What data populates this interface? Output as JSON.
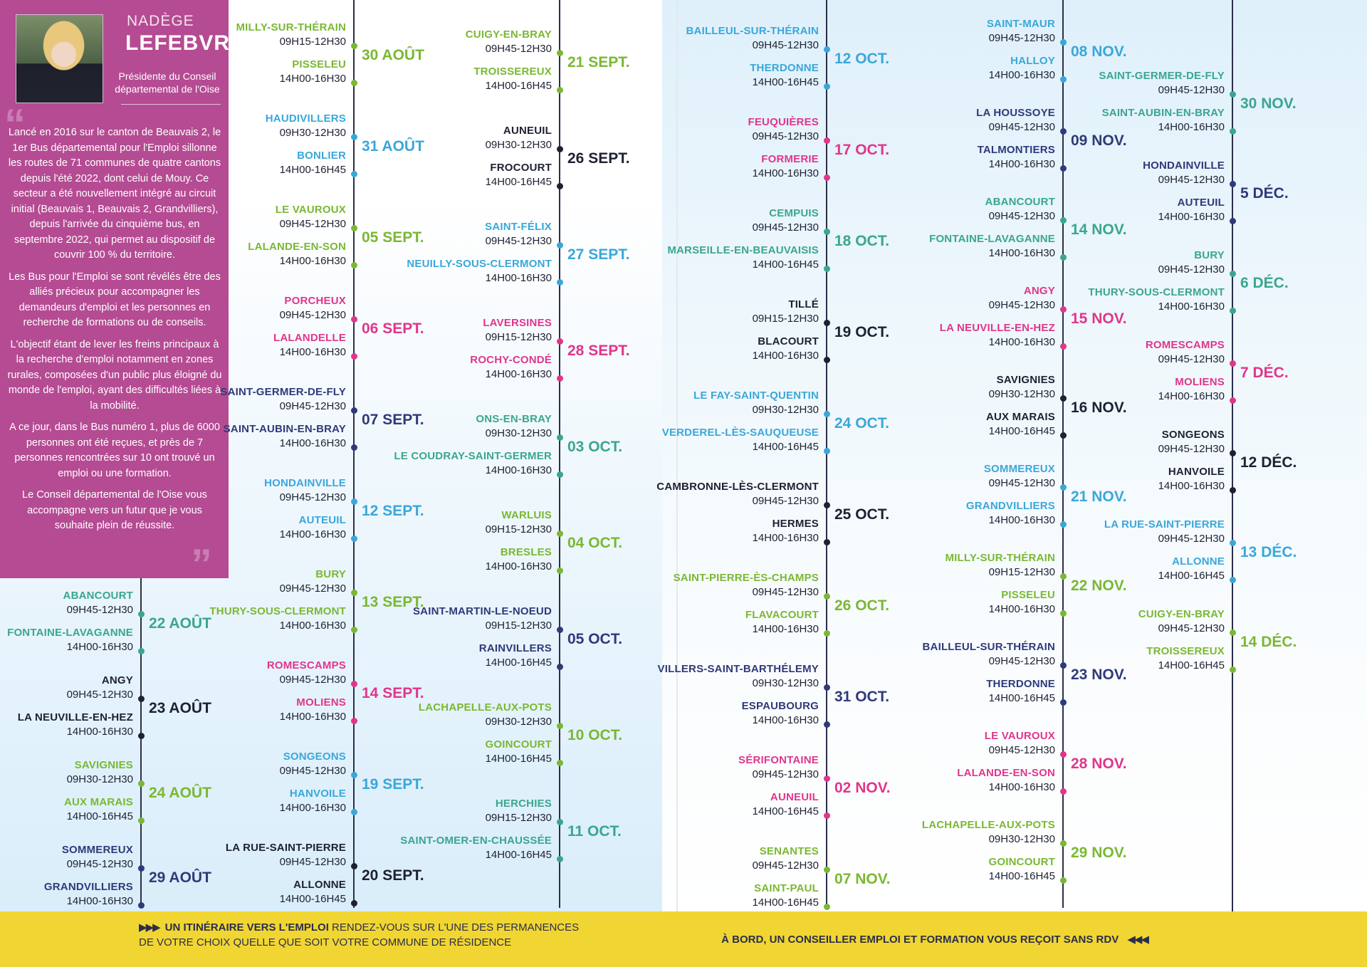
{
  "intro": {
    "name_first": "NADÈGE",
    "name_last": "LEFEBVRE",
    "role": "Présidente du Conseil départemental de l'Oise",
    "paragraphs": [
      "Lancé en 2016 sur le canton de Beauvais 2, le 1er Bus départemental pour l'Emploi sillonne les routes de 71 communes de quatre cantons depuis l'été 2022, dont celui de Mouy. Ce secteur a été nouvellement intégré au circuit initial (Beauvais 1, Beauvais 2, Grandvilliers), depuis l'arrivée du cinquième bus, en septembre 2022, qui permet au dispositif de couvrir 100 % du territoire.",
      "Les Bus pour l'Emploi se sont révélés être des alliés précieux pour accompagner les demandeurs d'emploi et les personnes en recherche de formations ou de conseils.",
      "L'objectif étant de lever les freins principaux à la recherche d'emploi notamment en zones rurales, composées d'un public plus éloigné du monde de l'emploi, ayant des difficultés liées à la mobilité.",
      "A ce jour, dans le Bus numéro 1, plus de 6000 personnes ont été reçues, et près de 7 personnes rencontrées sur 10 ont trouvé un emploi ou une formation.",
      "Le Conseil départemental de l'Oise vous accompagne vers un futur que je vous souhaite plein de réussite."
    ]
  },
  "colors": {
    "green": "#7ab833",
    "teal": "#3aa68f",
    "blue": "#3aa7d9",
    "pink": "#e0368c",
    "navy": "#2f3a7a",
    "dark": "#1e2132",
    "yellow": "#f1d633",
    "magenta_panel": "#b54b93"
  },
  "columns": [
    {
      "entries": [
        {
          "date": "22 AOÛT",
          "color": "teal",
          "stops": [
            {
              "city": "ABANCOURT",
              "hours": "09H45-12H30"
            },
            {
              "city": "FONTAINE-LAVAGANNE",
              "hours": "14H00-16H30"
            }
          ]
        },
        {
          "date": "23 AOÛT",
          "color": "dark",
          "stops": [
            {
              "city": "ANGY",
              "hours": "09H45-12H30"
            },
            {
              "city": "LA NEUVILLE-EN-HEZ",
              "hours": "14H00-16H30"
            }
          ]
        },
        {
          "date": "24 AOÛT",
          "color": "green",
          "stops": [
            {
              "city": "SAVIGNIES",
              "hours": "09H30-12H30"
            },
            {
              "city": "AUX MARAIS",
              "hours": "14H00-16H45"
            }
          ]
        },
        {
          "date": "29 AOÛT",
          "color": "navy",
          "stops": [
            {
              "city": "SOMMEREUX",
              "hours": "09H45-12H30"
            },
            {
              "city": "GRANDVILLIERS",
              "hours": "14H00-16H30"
            }
          ]
        }
      ]
    },
    {
      "entries": [
        {
          "date": "30 AOÛT",
          "color": "green",
          "stops": [
            {
              "city": "MILLY-SUR-THÉRAIN",
              "hours": "09H15-12H30"
            },
            {
              "city": "PISSELEU",
              "hours": "14H00-16H30"
            }
          ]
        },
        {
          "date": "31 AOÛT",
          "color": "blue",
          "stops": [
            {
              "city": "HAUDIVILLERS",
              "hours": "09H30-12H30"
            },
            {
              "city": "BONLIER",
              "hours": "14H00-16H45"
            }
          ]
        },
        {
          "date": "05 SEPT.",
          "color": "green",
          "stops": [
            {
              "city": "LE VAUROUX",
              "hours": "09H45-12H30"
            },
            {
              "city": "LALANDE-EN-SON",
              "hours": "14H00-16H30"
            }
          ]
        },
        {
          "date": "06 SEPT.",
          "color": "pink",
          "stops": [
            {
              "city": "PORCHEUX",
              "hours": "09H45-12H30"
            },
            {
              "city": "LALANDELLE",
              "hours": "14H00-16H30"
            }
          ]
        },
        {
          "date": "07 SEPT.",
          "color": "navy",
          "stops": [
            {
              "city": "SAINT-GERMER-DE-FLY",
              "hours": "09H45-12H30"
            },
            {
              "city": "SAINT-AUBIN-EN-BRAY",
              "hours": "14H00-16H30"
            }
          ]
        },
        {
          "date": "12 SEPT.",
          "color": "blue",
          "stops": [
            {
              "city": "HONDAINVILLE",
              "hours": "09H45-12H30"
            },
            {
              "city": "AUTEUIL",
              "hours": "14H00-16H30"
            }
          ]
        },
        {
          "date": "13 SEPT.",
          "color": "green",
          "stops": [
            {
              "city": "BURY",
              "hours": "09H45-12H30"
            },
            {
              "city": "THURY-SOUS-CLERMONT",
              "hours": "14H00-16H30"
            }
          ]
        },
        {
          "date": "14 SEPT.",
          "color": "pink",
          "stops": [
            {
              "city": "ROMESCAMPS",
              "hours": "09H45-12H30"
            },
            {
              "city": "MOLIENS",
              "hours": "14H00-16H30"
            }
          ]
        },
        {
          "date": "19 SEPT.",
          "color": "blue",
          "stops": [
            {
              "city": "SONGEONS",
              "hours": "09H45-12H30"
            },
            {
              "city": "HANVOILE",
              "hours": "14H00-16H30"
            }
          ]
        },
        {
          "date": "20 SEPT.",
          "color": "dark",
          "stops": [
            {
              "city": "LA RUE-SAINT-PIERRE",
              "hours": "09H45-12H30"
            },
            {
              "city": "ALLONNE",
              "hours": "14H00-16H45"
            }
          ]
        }
      ]
    },
    {
      "entries": [
        {
          "date": "21 SEPT.",
          "color": "green",
          "stops": [
            {
              "city": "CUIGY-EN-BRAY",
              "hours": "09H45-12H30"
            },
            {
              "city": "TROISSEREUX",
              "hours": "14H00-16H45"
            }
          ]
        },
        {
          "date": "26 SEPT.",
          "color": "dark",
          "stops": [
            {
              "city": "AUNEUIL",
              "hours": "09H30-12H30"
            },
            {
              "city": "FROCOURT",
              "hours": "14H00-16H45"
            }
          ]
        },
        {
          "date": "27 SEPT.",
          "color": "blue",
          "stops": [
            {
              "city": "SAINT-FÉLIX",
              "hours": "09H45-12H30"
            },
            {
              "city": "NEUILLY-SOUS-CLERMONT",
              "hours": "14H00-16H30"
            }
          ]
        },
        {
          "date": "28 SEPT.",
          "color": "pink",
          "stops": [
            {
              "city": "LAVERSINES",
              "hours": "09H15-12H30"
            },
            {
              "city": "ROCHY-CONDÉ",
              "hours": "14H00-16H30"
            }
          ]
        },
        {
          "date": "03 OCT.",
          "color": "teal",
          "stops": [
            {
              "city": "ONS-EN-BRAY",
              "hours": "09H30-12H30"
            },
            {
              "city": "LE COUDRAY-SAINT-GERMER",
              "hours": "14H00-16H30"
            }
          ]
        },
        {
          "date": "04 OCT.",
          "color": "green",
          "stops": [
            {
              "city": "WARLUIS",
              "hours": "09H15-12H30"
            },
            {
              "city": "BRESLES",
              "hours": "14H00-16H30"
            }
          ]
        },
        {
          "date": "05 OCT.",
          "color": "navy",
          "stops": [
            {
              "city": "SAINT-MARTIN-LE-NOEUD",
              "hours": "09H15-12H30"
            },
            {
              "city": "RAINVILLERS",
              "hours": "14H00-16H45"
            }
          ]
        },
        {
          "date": "10 OCT.",
          "color": "green",
          "stops": [
            {
              "city": "LACHAPELLE-AUX-POTS",
              "hours": "09H30-12H30"
            },
            {
              "city": "GOINCOURT",
              "hours": "14H00-16H45"
            }
          ]
        },
        {
          "date": "11 OCT.",
          "color": "teal",
          "stops": [
            {
              "city": "HERCHIES",
              "hours": "09H15-12H30"
            },
            {
              "city": "SAINT-OMER-EN-CHAUSSÉE",
              "hours": "14H00-16H45"
            }
          ]
        }
      ]
    },
    {
      "entries": [
        {
          "date": "12 OCT.",
          "color": "blue",
          "stops": [
            {
              "city": "BAILLEUL-SUR-THÉRAIN",
              "hours": "09H45-12H30"
            },
            {
              "city": "THERDONNE",
              "hours": "14H00-16H45"
            }
          ]
        },
        {
          "date": "17 OCT.",
          "color": "pink",
          "stops": [
            {
              "city": "FEUQUIÈRES",
              "hours": "09H45-12H30"
            },
            {
              "city": "FORMERIE",
              "hours": "14H00-16H30"
            }
          ]
        },
        {
          "date": "18 OCT.",
          "color": "teal",
          "stops": [
            {
              "city": "CEMPUIS",
              "hours": "09H45-12H30"
            },
            {
              "city": "MARSEILLE-EN-BEAUVAISIS",
              "hours": "14H00-16H45"
            }
          ]
        },
        {
          "date": "19 OCT.",
          "color": "dark",
          "stops": [
            {
              "city": "TILLÉ",
              "hours": "09H15-12H30"
            },
            {
              "city": "BLACOURT",
              "hours": "14H00-16H30"
            }
          ]
        },
        {
          "date": "24 OCT.",
          "color": "blue",
          "stops": [
            {
              "city": "LE FAY-SAINT-QUENTIN",
              "hours": "09H30-12H30"
            },
            {
              "city": "VERDEREL-LÈS-SAUQUEUSE",
              "hours": "14H00-16H45"
            }
          ]
        },
        {
          "date": "25 OCT.",
          "color": "dark",
          "stops": [
            {
              "city": "CAMBRONNE-LÈS-CLERMONT",
              "hours": "09H45-12H30"
            },
            {
              "city": "HERMES",
              "hours": "14H00-16H30"
            }
          ]
        },
        {
          "date": "26 OCT.",
          "color": "green",
          "stops": [
            {
              "city": "SAINT-PIERRE-ÈS-CHAMPS",
              "hours": "09H45-12H30"
            },
            {
              "city": "FLAVACOURT",
              "hours": "14H00-16H30"
            }
          ]
        },
        {
          "date": "31 OCT.",
          "color": "navy",
          "stops": [
            {
              "city": "VILLERS-SAINT-BARTHÉLEMY",
              "hours": "09H30-12H30"
            },
            {
              "city": "ESPAUBOURG",
              "hours": "14H00-16H30"
            }
          ]
        },
        {
          "date": "02 NOV.",
          "color": "pink",
          "stops": [
            {
              "city": "SÉRIFONTAINE",
              "hours": "09H45-12H30"
            },
            {
              "city": "AUNEUIL",
              "hours": "14H00-16H45"
            }
          ]
        },
        {
          "date": "07 NOV.",
          "color": "green",
          "stops": [
            {
              "city": "SENANTES",
              "hours": "09H45-12H30"
            },
            {
              "city": "SAINT-PAUL",
              "hours": "14H00-16H45"
            }
          ]
        }
      ]
    },
    {
      "entries": [
        {
          "date": "08 NOV.",
          "color": "blue",
          "stops": [
            {
              "city": "SAINT-MAUR",
              "hours": "09H45-12H30"
            },
            {
              "city": "HALLOY",
              "hours": "14H00-16H30"
            }
          ]
        },
        {
          "date": "09 NOV.",
          "color": "navy",
          "stops": [
            {
              "city": "LA HOUSSOYE",
              "hours": "09H45-12H30"
            },
            {
              "city": "TALMONTIERS",
              "hours": "14H00-16H30"
            }
          ]
        },
        {
          "date": "14 NOV.",
          "color": "teal",
          "stops": [
            {
              "city": "ABANCOURT",
              "hours": "09H45-12H30"
            },
            {
              "city": "FONTAINE-LAVAGANNE",
              "hours": "14H00-16H30"
            }
          ]
        },
        {
          "date": "15 NOV.",
          "color": "pink",
          "stops": [
            {
              "city": "ANGY",
              "hours": "09H45-12H30"
            },
            {
              "city": "LA NEUVILLE-EN-HEZ",
              "hours": "14H00-16H30"
            }
          ]
        },
        {
          "date": "16 NOV.",
          "color": "dark",
          "stops": [
            {
              "city": "SAVIGNIES",
              "hours": "09H30-12H30"
            },
            {
              "city": "AUX MARAIS",
              "hours": "14H00-16H45"
            }
          ]
        },
        {
          "date": "21 NOV.",
          "color": "blue",
          "stops": [
            {
              "city": "SOMMEREUX",
              "hours": "09H45-12H30"
            },
            {
              "city": "GRANDVILLIERS",
              "hours": "14H00-16H30"
            }
          ]
        },
        {
          "date": "22 NOV.",
          "color": "green",
          "stops": [
            {
              "city": "MILLY-SUR-THÉRAIN",
              "hours": "09H15-12H30"
            },
            {
              "city": "PISSELEU",
              "hours": "14H00-16H30"
            }
          ]
        },
        {
          "date": "23 NOV.",
          "color": "navy",
          "stops": [
            {
              "city": "BAILLEUL-SUR-THÉRAIN",
              "hours": "09H45-12H30"
            },
            {
              "city": "THERDONNE",
              "hours": "14H00-16H45"
            }
          ]
        },
        {
          "date": "28 NOV.",
          "color": "pink",
          "stops": [
            {
              "city": "LE VAUROUX",
              "hours": "09H45-12H30"
            },
            {
              "city": "LALANDE-EN-SON",
              "hours": "14H00-16H30"
            }
          ]
        },
        {
          "date": "29 NOV.",
          "color": "green",
          "stops": [
            {
              "city": "LACHAPELLE-AUX-POTS",
              "hours": "09H30-12H30"
            },
            {
              "city": "GOINCOURT",
              "hours": "14H00-16H45"
            }
          ]
        }
      ]
    },
    {
      "entries": [
        {
          "date": "30 NOV.",
          "color": "teal",
          "stops": [
            {
              "city": "SAINT-GERMER-DE-FLY",
              "hours": "09H45-12H30"
            },
            {
              "city": "SAINT-AUBIN-EN-BRAY",
              "hours": "14H00-16H30"
            }
          ]
        },
        {
          "date": "5 DÉC.",
          "color": "navy",
          "stops": [
            {
              "city": "HONDAINVILLE",
              "hours": "09H45-12H30"
            },
            {
              "city": "AUTEUIL",
              "hours": "14H00-16H30"
            }
          ]
        },
        {
          "date": "6 DÉC.",
          "color": "teal",
          "stops": [
            {
              "city": "BURY",
              "hours": "09H45-12H30"
            },
            {
              "city": "THURY-SOUS-CLERMONT",
              "hours": "14H00-16H30"
            }
          ]
        },
        {
          "date": "7 DÉC.",
          "color": "pink",
          "stops": [
            {
              "city": "ROMESCAMPS",
              "hours": "09H45-12H30"
            },
            {
              "city": "MOLIENS",
              "hours": "14H00-16H30"
            }
          ]
        },
        {
          "date": "12 DÉC.",
          "color": "dark",
          "stops": [
            {
              "city": "SONGEONS",
              "hours": "09H45-12H30"
            },
            {
              "city": "HANVOILE",
              "hours": "14H00-16H30"
            }
          ]
        },
        {
          "date": "13 DÉC.",
          "color": "blue",
          "stops": [
            {
              "city": "LA RUE-SAINT-PIERRE",
              "hours": "09H45-12H30"
            },
            {
              "city": "ALLONNE",
              "hours": "14H00-16H45"
            }
          ]
        },
        {
          "date": "14 DÉC.",
          "color": "green",
          "stops": [
            {
              "city": "CUIGY-EN-BRAY",
              "hours": "09H45-12H30"
            },
            {
              "city": "TROISSEREUX",
              "hours": "14H00-16H45"
            }
          ]
        }
      ]
    }
  ],
  "footer": {
    "left_arrows": "▶▶▶",
    "left_bold": "UN ITINÉRAIRE VERS L'EMPLOI",
    "left_line1": " RENDEZ-VOUS SUR L'UNE DES PERMANENCES",
    "left_line2": "DE VOTRE CHOIX  QUELLE QUE SOIT VOTRE COMMUNE DE RÉSIDENCE",
    "right_bold": "À BORD, UN CONSEILLER EMPLOI ET FORMATION VOUS REÇOIT SANS RDV",
    "right_arrows": "◀◀◀"
  }
}
